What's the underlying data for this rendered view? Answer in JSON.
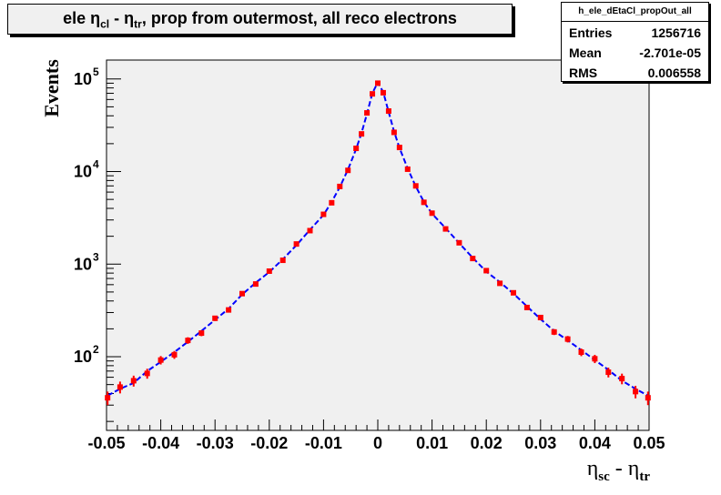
{
  "title": {
    "prefix": "ele ",
    "eta": "η",
    "sub1": "cl",
    "middle": " - ",
    "sub2": "tr",
    "rest": ", prop from outermost, all reco electrons"
  },
  "stats": {
    "name": "h_ele_dEtaCl_propOut_all",
    "rows": [
      {
        "label": "Entries",
        "value": "1256716"
      },
      {
        "label": "Mean",
        "value": "-2.701e-05"
      },
      {
        "label": "RMS",
        "value": "0.006558"
      }
    ]
  },
  "axes": {
    "ylabel": "Events",
    "xlabel_eta": "η",
    "xlabel_sub1": "sc",
    "xlabel_middle": " - ",
    "xlabel_sub2": "tr"
  },
  "chart_data": {
    "type": "line",
    "title": "ele η_cl - η_tr, prop from outermost, all reco electrons",
    "xlabel": "η_sc - η_tr",
    "ylabel": "Events",
    "xlim": [
      -0.05,
      0.05
    ],
    "ylim": [
      16,
      160000
    ],
    "yscale": "log",
    "x_ticks": [
      -0.05,
      -0.04,
      -0.03,
      -0.02,
      -0.01,
      0,
      0.01,
      0.02,
      0.03,
      0.04,
      0.05
    ],
    "x_tick_labels": [
      "-0.05",
      "-0.04",
      "-0.03",
      "-0.02",
      "-0.01",
      "0",
      "0.01",
      "0.02",
      "0.03",
      "0.04",
      "0.05"
    ],
    "y_ticks": [
      100,
      1000,
      10000,
      100000
    ],
    "y_tick_labels": [
      "10",
      "10",
      "10",
      "10"
    ],
    "y_tick_exponents": [
      "2",
      "3",
      "4",
      "5"
    ],
    "grid": false,
    "legend": "none",
    "colors": {
      "reference": "#0000ff",
      "data": "#ff0000",
      "frame_bg": "#f0f0f0"
    },
    "series": [
      {
        "style": "line",
        "x": [
          -0.0498,
          -0.0475,
          -0.045,
          -0.0425,
          -0.04,
          -0.0375,
          -0.035,
          -0.0325,
          -0.03,
          -0.0275,
          -0.025,
          -0.0225,
          -0.02,
          -0.0175,
          -0.015,
          -0.0125,
          -0.01,
          -0.0085,
          -0.007,
          -0.0055,
          -0.004,
          -0.003,
          -0.002,
          -0.001,
          0,
          0.001,
          0.002,
          0.003,
          0.004,
          0.0055,
          0.007,
          0.0085,
          0.01,
          0.0125,
          0.015,
          0.0175,
          0.02,
          0.0225,
          0.025,
          0.0275,
          0.03,
          0.0325,
          0.035,
          0.0375,
          0.04,
          0.0425,
          0.045,
          0.0475,
          0.0498
        ],
        "y": [
          38,
          45,
          52,
          70,
          88,
          112,
          145,
          190,
          250,
          330,
          470,
          630,
          820,
          1130,
          1600,
          2350,
          3400,
          4700,
          6800,
          10500,
          17500,
          26000,
          42000,
          70000,
          92000,
          72000,
          44000,
          27000,
          18000,
          10800,
          6900,
          4700,
          3500,
          2450,
          1680,
          1170,
          830,
          640,
          480,
          350,
          255,
          190,
          150,
          118,
          92,
          72,
          55,
          45,
          38
        ]
      },
      {
        "style": "points",
        "x": [
          -0.0498,
          -0.0475,
          -0.045,
          -0.0425,
          -0.04,
          -0.0375,
          -0.035,
          -0.0325,
          -0.03,
          -0.0275,
          -0.025,
          -0.0225,
          -0.02,
          -0.0175,
          -0.015,
          -0.0125,
          -0.01,
          -0.0085,
          -0.007,
          -0.0055,
          -0.004,
          -0.003,
          -0.002,
          -0.001,
          0,
          0.001,
          0.002,
          0.003,
          0.004,
          0.0055,
          0.007,
          0.0085,
          0.01,
          0.0125,
          0.015,
          0.0175,
          0.02,
          0.0225,
          0.025,
          0.0275,
          0.03,
          0.0325,
          0.035,
          0.0375,
          0.04,
          0.0425,
          0.045,
          0.0475,
          0.0498
        ],
        "y": [
          36,
          47,
          55,
          66,
          92,
          105,
          150,
          180,
          260,
          320,
          480,
          610,
          840,
          1100,
          1650,
          2300,
          3450,
          4600,
          6900,
          10300,
          17800,
          25500,
          43000,
          69000,
          90000,
          71000,
          45000,
          26500,
          18200,
          10600,
          7000,
          4650,
          3550,
          2400,
          1700,
          1150,
          850,
          620,
          490,
          340,
          265,
          185,
          155,
          112,
          95,
          68,
          58,
          42,
          36
        ]
      }
    ]
  }
}
